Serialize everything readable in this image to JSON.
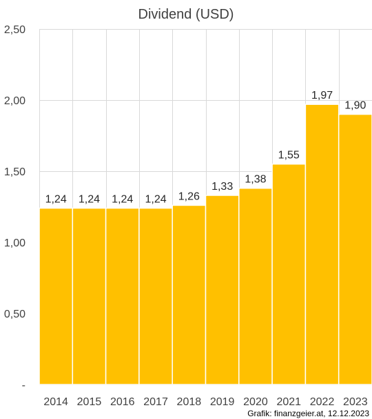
{
  "chart_data": {
    "type": "bar",
    "title": "Dividend (USD)",
    "categories": [
      "2014",
      "2015",
      "2016",
      "2017",
      "2018",
      "2019",
      "2020",
      "2021",
      "2022",
      "2023"
    ],
    "values": [
      1.24,
      1.24,
      1.24,
      1.24,
      1.26,
      1.33,
      1.38,
      1.55,
      1.97,
      1.9
    ],
    "value_labels": [
      "1,24",
      "1,24",
      "1,24",
      "1,24",
      "1,26",
      "1,33",
      "1,38",
      "1,55",
      "1,97",
      "1,90"
    ],
    "ylim": [
      0,
      2.5
    ],
    "yticks": [
      0,
      0.5,
      1.0,
      1.5,
      2.0,
      2.5
    ],
    "ytick_labels": [
      "-",
      "0,50",
      "1,00",
      "1,50",
      "2,00",
      "2,50"
    ],
    "xlabel": "",
    "ylabel": "",
    "grid": true,
    "bar_color": "#FFC000",
    "grid_color": "#D9D9D9",
    "source": "Grafik: finanzgeier.at, 12.12.2023"
  }
}
